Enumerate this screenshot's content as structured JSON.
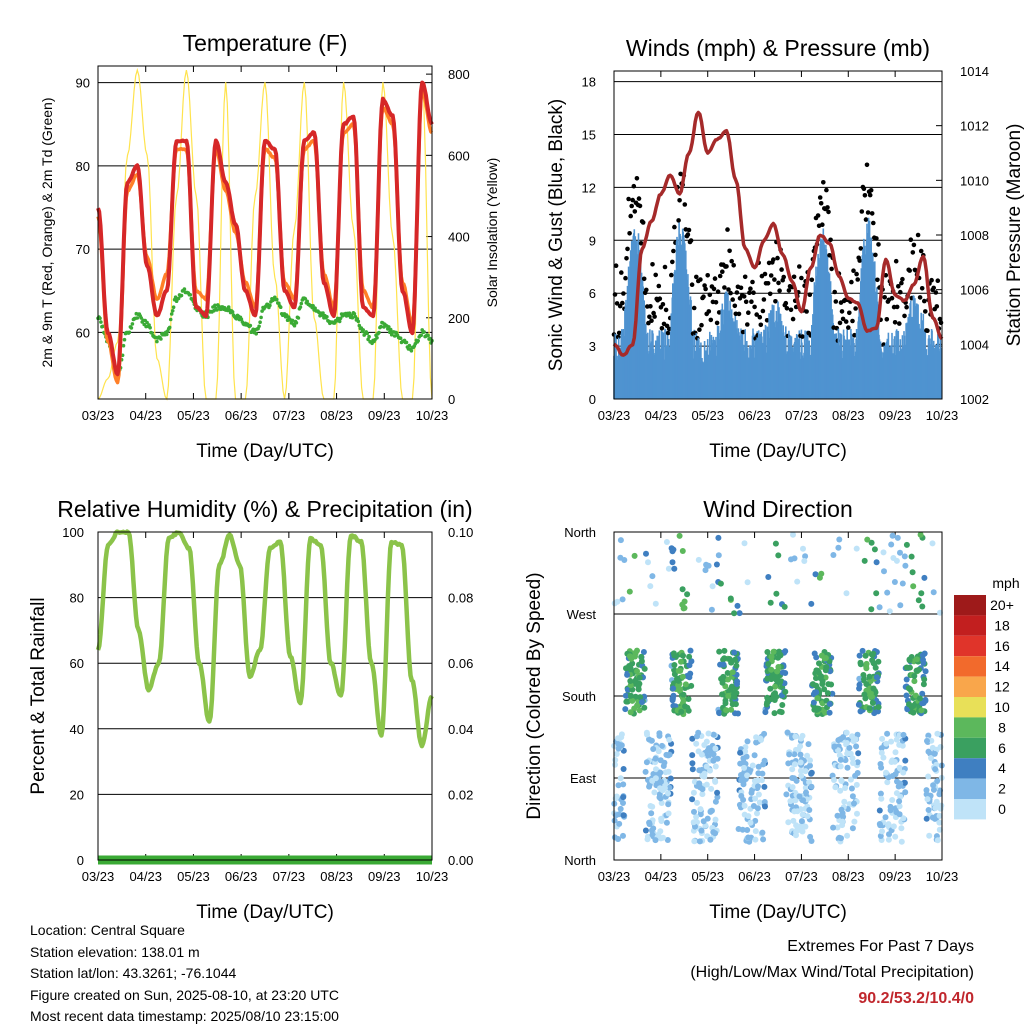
{
  "x_tick_labels": [
    "03/23",
    "04/23",
    "05/23",
    "06/23",
    "07/23",
    "08/23",
    "09/23",
    "10/23"
  ],
  "xlabel": "Time (Day/UTC)",
  "chart_data": [
    {
      "type": "line",
      "title": "Temperature (F)",
      "xlabel": "Time (Day/UTC)",
      "ylabel": "2m & 9m T (Red, Orange) & 2m Td (Green)",
      "y2label": "Solar Insolation (Yellow)",
      "ylim": [
        52,
        92
      ],
      "y2lim": [
        0,
        820
      ],
      "yticks": [
        60,
        70,
        80,
        90
      ],
      "y2ticks": [
        0,
        200,
        400,
        600,
        800
      ],
      "series": [
        {
          "color": "#d62728",
          "values": [
            75,
            60,
            55,
            78,
            80,
            68,
            62,
            65,
            83,
            83,
            63,
            62,
            83,
            78,
            73,
            65,
            62,
            83,
            82,
            65,
            63,
            83,
            84,
            66,
            62,
            85,
            86,
            63,
            62,
            88,
            86,
            65,
            60,
            90,
            85
          ]
        },
        {
          "color": "#ff7f27",
          "values": [
            74,
            59,
            54,
            77,
            79,
            69,
            64,
            67,
            82,
            82,
            65,
            64,
            82,
            77,
            72,
            66,
            63,
            82,
            81,
            66,
            64,
            82,
            83,
            67,
            63,
            84,
            85,
            65,
            63,
            87,
            85,
            66,
            61,
            89,
            84
          ]
        },
        {
          "color": "#3aaa35",
          "values": [
            62,
            59,
            55,
            60,
            62,
            61,
            59,
            60,
            64,
            65,
            63,
            62,
            63,
            63,
            62,
            61,
            60,
            63,
            64,
            62,
            61,
            64,
            63,
            62,
            61,
            62,
            62,
            60,
            59,
            61,
            60,
            59,
            58,
            60,
            59
          ]
        },
        {
          "color": "#ffe34d",
          "values": [
            0,
            50,
            140,
            600,
            810,
            600,
            100,
            0,
            500,
            810,
            500,
            0,
            0,
            780,
            0,
            0,
            500,
            780,
            300,
            0,
            420,
            780,
            200,
            0,
            0,
            780,
            420,
            0,
            0,
            780,
            400,
            0,
            0,
            780,
            0
          ]
        }
      ]
    },
    {
      "type": "scatter",
      "title": "Winds (mph) & Pressure (mb)",
      "xlabel": "Time (Day/UTC)",
      "ylabel": "Sonic Wind & Gust (Blue, Black)",
      "y2label": "Station Pressure (Maroon)",
      "ylim": [
        0,
        18.6
      ],
      "y2lim": [
        1002,
        1014
      ],
      "yticks": [
        0,
        3,
        6,
        9,
        12,
        15,
        18
      ],
      "y2ticks": [
        1002,
        1004,
        1006,
        1008,
        1010,
        1012,
        1014
      ],
      "series": [
        {
          "color": "#a52a2a",
          "values": [
            1004,
            1003.6,
            1004,
            1007.5,
            1008.5,
            1009.5,
            1010.2,
            1009.5,
            1011,
            1012.5,
            1011,
            1011.5,
            1011.8,
            1010,
            1007.5,
            1006.8,
            1007.8,
            1008.4,
            1007.3,
            1006.3,
            1005.2,
            1006.8,
            1008,
            1007.7,
            1006.5,
            1005.7,
            1005.5,
            1004.5,
            1004.6,
            1007.1,
            1005.8,
            1005.6,
            1006.2,
            1007.2,
            1005,
            1004.2
          ]
        }
      ]
    },
    {
      "type": "line",
      "title": "Relative Humidity (%) & Precipitation (in)",
      "xlabel": "Time (Day/UTC)",
      "ylabel": "Percent & Total Rainfall",
      "ylim": [
        0,
        100
      ],
      "y2lim": [
        0,
        0.1
      ],
      "yticks": [
        0,
        20,
        40,
        60,
        80,
        100
      ],
      "y2ticks": [
        "0.00",
        "0.02",
        "0.04",
        "0.06",
        "0.08",
        "0.10"
      ],
      "series": [
        {
          "color": "#8bc34a",
          "values": [
            64,
            96,
            100,
            100,
            70,
            52,
            60,
            98,
            100,
            95,
            60,
            42,
            90,
            99,
            90,
            56,
            64,
            95,
            97,
            62,
            48,
            98,
            96,
            60,
            50,
            99,
            97,
            60,
            38,
            97,
            96,
            55,
            35,
            50
          ]
        },
        {
          "color": "#3aaa35",
          "values": [
            0,
            0,
            0,
            0,
            0,
            0,
            0,
            0,
            0,
            0,
            0,
            0,
            0,
            0,
            0,
            0,
            0,
            0,
            0,
            0,
            0,
            0,
            0,
            0,
            0,
            0,
            0,
            0,
            0,
            0,
            0,
            0,
            0,
            0
          ]
        }
      ]
    },
    {
      "type": "scatter",
      "title": "Wind Direction",
      "xlabel": "Time (Day/UTC)",
      "ylabel": "Direction (Colored By Speed)",
      "yticks": [
        "North",
        "East",
        "South",
        "West",
        "North"
      ],
      "legend_title": "mph",
      "legend_labels": [
        "20+",
        "18",
        "16",
        "14",
        "12",
        "10",
        "8",
        "6",
        "4",
        "2",
        "0"
      ],
      "legend_colors": [
        "#9e1a1a",
        "#c21f1f",
        "#e0342a",
        "#f26a2c",
        "#f9a64b",
        "#e8e058",
        "#5cb85c",
        "#3aa060",
        "#3f7fc1",
        "#7fb7e6",
        "#bfe3f8"
      ]
    }
  ],
  "info": {
    "location": "Location: Central Square",
    "elevation": "Station elevation: 138.01 m",
    "latlon": "Station lat/lon: 43.3261; -76.1044",
    "created": "Figure created on Sun, 2025-08-10, at 23:20 UTC",
    "recent": "Most recent data timestamp: 2025/08/10 23:15:00"
  },
  "extremes": {
    "title": "Extremes For Past 7 Days",
    "subtitle": "(High/Low/Max Wind/Total Precipitation)",
    "values": "90.2/53.2/10.4/0"
  }
}
